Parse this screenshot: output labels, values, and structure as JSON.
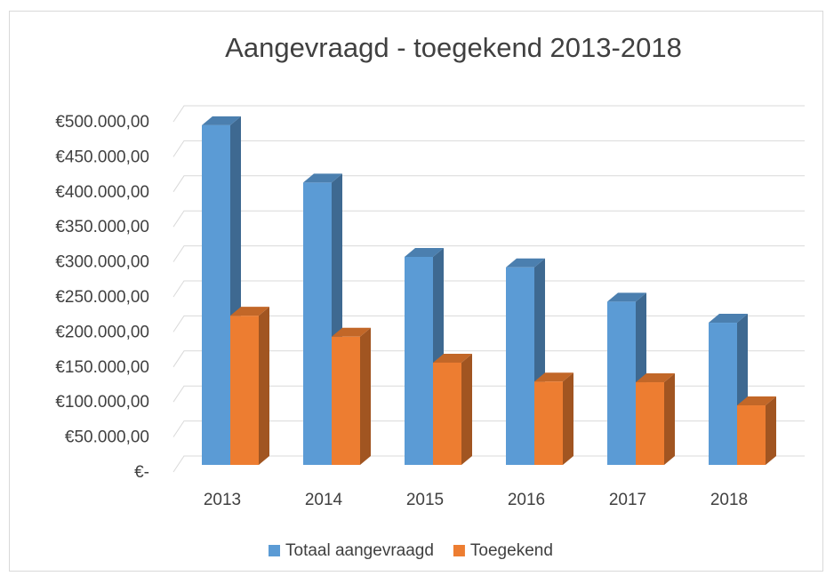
{
  "chart_data": {
    "type": "bar3d",
    "title": "Aangevraagd - toegekend 2013-2018",
    "categories": [
      "2013",
      "2014",
      "2015",
      "2016",
      "2017",
      "2018"
    ],
    "series": [
      {
        "name": "Totaal aangevraagd",
        "color": "#5b9bd5",
        "values": [
          485000,
          403000,
          297000,
          282000,
          233000,
          203000
        ]
      },
      {
        "name": "Toegekend",
        "color": "#ed7d31",
        "values": [
          213000,
          183000,
          146000,
          119000,
          118000,
          85000
        ]
      }
    ],
    "ylim": [
      0,
      500000
    ],
    "yticks": [
      {
        "value": 0,
        "label": "€-"
      },
      {
        "value": 50000,
        "label": "€50.000,00"
      },
      {
        "value": 100000,
        "label": "€100.000,00"
      },
      {
        "value": 150000,
        "label": "€150.000,00"
      },
      {
        "value": 200000,
        "label": "€200.000,00"
      },
      {
        "value": 250000,
        "label": "€250.000,00"
      },
      {
        "value": 300000,
        "label": "€300.000,00"
      },
      {
        "value": 350000,
        "label": "€350.000,00"
      },
      {
        "value": 400000,
        "label": "€400.000,00"
      },
      {
        "value": 450000,
        "label": "€450.000,00"
      },
      {
        "value": 500000,
        "label": "€500.000,00"
      }
    ],
    "grid": true
  }
}
